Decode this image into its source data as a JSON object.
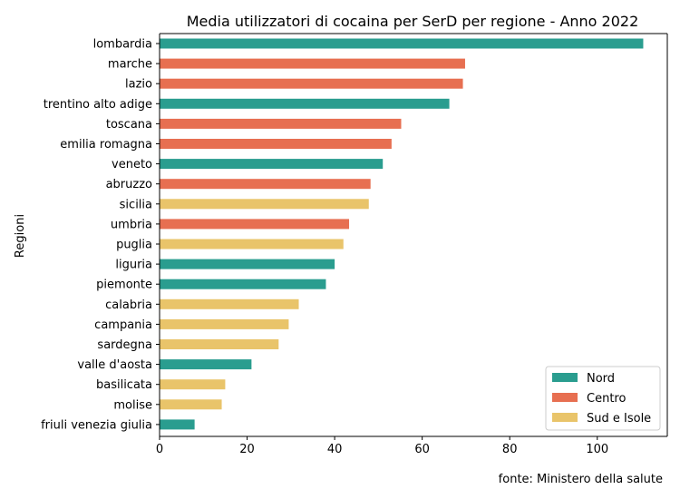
{
  "chart_data": {
    "type": "bar",
    "orientation": "horizontal",
    "title": "Media utilizzatori di cocaina per SerD per regione - Anno 2022",
    "xlabel": "",
    "ylabel": "Regioni",
    "xlim": [
      0,
      116
    ],
    "xticks": [
      0,
      20,
      40,
      60,
      80,
      100
    ],
    "grid": false,
    "legend_position": "bottom-right",
    "source": "fonte: Ministero della salute",
    "groups": [
      {
        "name": "Nord",
        "color": "#2a9d8f"
      },
      {
        "name": "Centro",
        "color": "#e76f51"
      },
      {
        "name": "Sud e Isole",
        "color": "#e9c46a"
      }
    ],
    "bars": [
      {
        "category": "lombardia",
        "value": 110.5,
        "group": "Nord"
      },
      {
        "category": "marche",
        "value": 69.8,
        "group": "Centro"
      },
      {
        "category": "lazio",
        "value": 69.3,
        "group": "Centro"
      },
      {
        "category": "trentino alto adige",
        "value": 66.2,
        "group": "Nord"
      },
      {
        "category": "toscana",
        "value": 55.2,
        "group": "Centro"
      },
      {
        "category": "emilia romagna",
        "value": 53.0,
        "group": "Centro"
      },
      {
        "category": "veneto",
        "value": 51.0,
        "group": "Nord"
      },
      {
        "category": "abruzzo",
        "value": 48.2,
        "group": "Centro"
      },
      {
        "category": "sicilia",
        "value": 47.8,
        "group": "Sud e Isole"
      },
      {
        "category": "umbria",
        "value": 43.3,
        "group": "Centro"
      },
      {
        "category": "puglia",
        "value": 42.0,
        "group": "Sud e Isole"
      },
      {
        "category": "liguria",
        "value": 40.0,
        "group": "Nord"
      },
      {
        "category": "piemonte",
        "value": 38.0,
        "group": "Nord"
      },
      {
        "category": "calabria",
        "value": 31.8,
        "group": "Sud e Isole"
      },
      {
        "category": "campania",
        "value": 29.5,
        "group": "Sud e Isole"
      },
      {
        "category": "sardegna",
        "value": 27.2,
        "group": "Sud e Isole"
      },
      {
        "category": "valle d'aosta",
        "value": 21.0,
        "group": "Nord"
      },
      {
        "category": "basilicata",
        "value": 15.0,
        "group": "Sud e Isole"
      },
      {
        "category": "molise",
        "value": 14.2,
        "group": "Sud e Isole"
      },
      {
        "category": "friuli venezia giulia",
        "value": 8.0,
        "group": "Nord"
      }
    ]
  }
}
